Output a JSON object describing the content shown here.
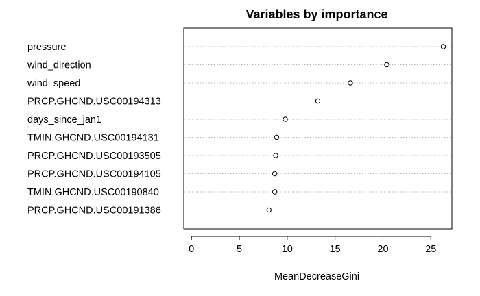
{
  "chart_data": {
    "type": "scatter",
    "title": "Variables by importance",
    "xlabel": "MeanDecreaseGini",
    "ylabel": "",
    "xlim": [
      -0.8,
      27.2
    ],
    "xticks": [
      "0",
      "5",
      "10",
      "15",
      "20",
      "25"
    ],
    "grid": "dotted horizontal",
    "categories": [
      "pressure",
      "wind_direction",
      "wind_speed",
      "PRCP.GHCND.USC00194313",
      "days_since_jan1",
      "TMIN.GHCND.USC00194131",
      "PRCP.GHCND.USC00193505",
      "PRCP.GHCND.USC00194105",
      "TMIN.GHCND.USC00190840",
      "PRCP.GHCND.USC00191386"
    ],
    "values": [
      26.3,
      20.4,
      16.6,
      13.2,
      9.8,
      8.9,
      8.8,
      8.7,
      8.7,
      8.1
    ]
  }
}
